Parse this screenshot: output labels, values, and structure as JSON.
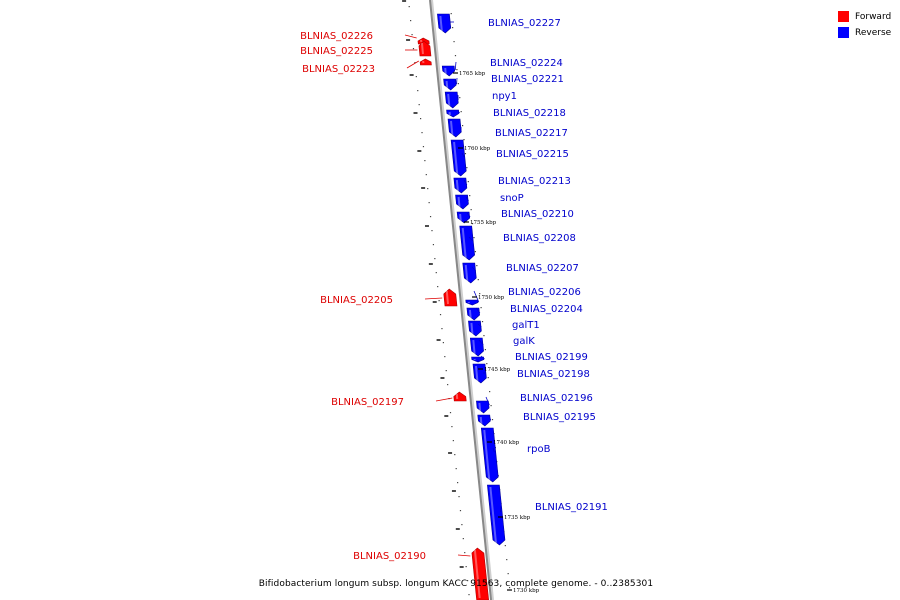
{
  "colors": {
    "forward": "#ff0000",
    "reverse": "#0000ff",
    "backbone": "#888888",
    "forward_label": "#dd0000",
    "reverse_label": "#0000cc"
  },
  "legend": [
    {
      "label": "Forward",
      "color": "#ff0000"
    },
    {
      "label": "Reverse",
      "color": "#0000ff"
    }
  ],
  "caption": "Bifidobacterium longum subsp. longum KACC 91563, complete genome. - 0..2385301",
  "scale_labels": [
    "1765 kbp",
    "1760 kbp",
    "1755 kbp",
    "1750 kbp",
    "1745 kbp",
    "1740 kbp",
    "1735 kbp",
    "1730 kbp"
  ],
  "genes": [
    {
      "name": "BLNIAS_02227",
      "strand": "reverse"
    },
    {
      "name": "BLNIAS_02226",
      "strand": "forward"
    },
    {
      "name": "BLNIAS_02225",
      "strand": "forward"
    },
    {
      "name": "BLNIAS_02223",
      "strand": "forward"
    },
    {
      "name": "BLNIAS_02224",
      "strand": "reverse"
    },
    {
      "name": "BLNIAS_02221",
      "strand": "reverse"
    },
    {
      "name": "npy1",
      "strand": "reverse"
    },
    {
      "name": "BLNIAS_02218",
      "strand": "reverse"
    },
    {
      "name": "BLNIAS_02217",
      "strand": "reverse"
    },
    {
      "name": "BLNIAS_02215",
      "strand": "reverse"
    },
    {
      "name": "BLNIAS_02213",
      "strand": "reverse"
    },
    {
      "name": "snoP",
      "strand": "reverse"
    },
    {
      "name": "BLNIAS_02210",
      "strand": "reverse"
    },
    {
      "name": "BLNIAS_02208",
      "strand": "reverse"
    },
    {
      "name": "BLNIAS_02207",
      "strand": "reverse"
    },
    {
      "name": "BLNIAS_02206",
      "strand": "reverse"
    },
    {
      "name": "BLNIAS_02205",
      "strand": "forward"
    },
    {
      "name": "BLNIAS_02204",
      "strand": "reverse"
    },
    {
      "name": "galT1",
      "strand": "reverse"
    },
    {
      "name": "galK",
      "strand": "reverse"
    },
    {
      "name": "BLNIAS_02199",
      "strand": "reverse"
    },
    {
      "name": "BLNIAS_02198",
      "strand": "reverse"
    },
    {
      "name": "BLNIAS_02197",
      "strand": "forward"
    },
    {
      "name": "BLNIAS_02196",
      "strand": "reverse"
    },
    {
      "name": "BLNIAS_02195",
      "strand": "reverse"
    },
    {
      "name": "rpoB",
      "strand": "reverse"
    },
    {
      "name": "BLNIAS_02191",
      "strand": "reverse"
    },
    {
      "name": "BLNIAS_02190",
      "strand": "forward"
    }
  ]
}
